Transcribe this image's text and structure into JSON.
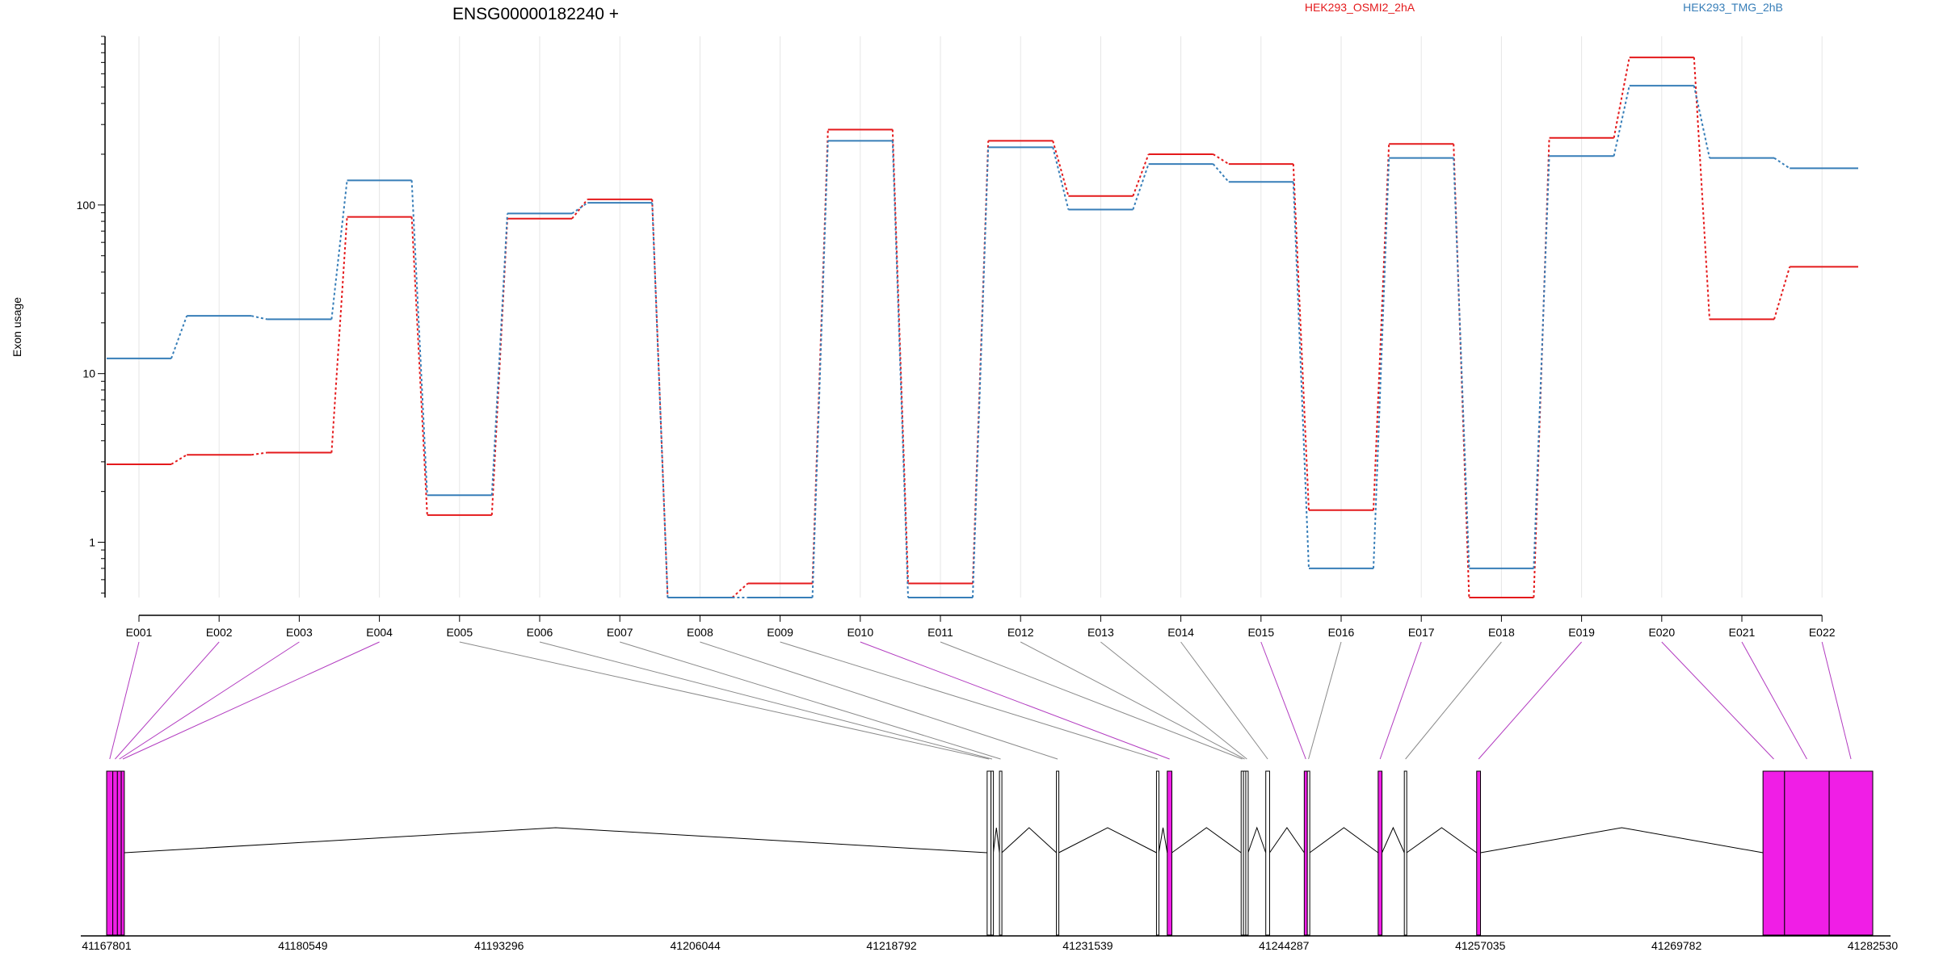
{
  "chart_data": [
    {
      "type": "line",
      "title": "ENSG00000182240 +",
      "ylabel": "Exon usage",
      "yscale": "log",
      "ylim": [
        0.47,
        1000
      ],
      "yticks": [
        1,
        10,
        100
      ],
      "ytick_labels": [
        "1",
        "10",
        "100"
      ],
      "grid": "vertical",
      "legend_placement": "top-right",
      "categories": [
        "E001",
        "E002",
        "E003",
        "E004",
        "E005",
        "E006",
        "E007",
        "E008",
        "E009",
        "E010",
        "E011",
        "E012",
        "E013",
        "E014",
        "E015",
        "E016",
        "E017",
        "E018",
        "E019",
        "E020",
        "E021",
        "E022"
      ],
      "series": [
        {
          "name": "HEK293_OSMI2_2hA",
          "color": "#e41a1c",
          "values": [
            2.9,
            3.3,
            3.4,
            85,
            1.45,
            83,
            108,
            0.47,
            0.57,
            280,
            0.57,
            240,
            113,
            200,
            175,
            1.55,
            230,
            0.47,
            250,
            750,
            21,
            43
          ]
        },
        {
          "name": "HEK293_TMG_2hB",
          "color": "#377eb8",
          "values": [
            12.3,
            22,
            21,
            140,
            1.9,
            89,
            103,
            0.47,
            0.47,
            240,
            0.47,
            220,
            94,
            175,
            137,
            0.7,
            190,
            0.7,
            195,
            510,
            190,
            165
          ]
        }
      ]
    },
    {
      "type": "gene-model",
      "x_ticks": [
        "41167801",
        "41180549",
        "41193296",
        "41206044",
        "41218792",
        "41231539",
        "41244287",
        "41257035",
        "41269782",
        "41282530"
      ],
      "xlim": [
        41167801,
        41282530
      ],
      "highlight_color": "#f01ee6",
      "exons": [
        {
          "id": "E001",
          "start": 41167801,
          "end": 41168200,
          "highlight": true
        },
        {
          "id": "E002",
          "start": 41168200,
          "end": 41168500,
          "highlight": true
        },
        {
          "id": "E003",
          "start": 41168500,
          "end": 41168750,
          "highlight": true
        },
        {
          "id": "E004",
          "start": 41168750,
          "end": 41168950,
          "highlight": true
        },
        {
          "id": "E005",
          "start": 41225000,
          "end": 41225250,
          "highlight": false
        },
        {
          "id": "E006",
          "start": 41225250,
          "end": 41225400,
          "highlight": false
        },
        {
          "id": "E007",
          "start": 41225800,
          "end": 41225950,
          "highlight": false
        },
        {
          "id": "E008",
          "start": 41229500,
          "end": 41229650,
          "highlight": false
        },
        {
          "id": "E009",
          "start": 41236000,
          "end": 41236150,
          "highlight": false
        },
        {
          "id": "E010",
          "start": 41236700,
          "end": 41237000,
          "highlight": true
        },
        {
          "id": "E011",
          "start": 41241500,
          "end": 41241650,
          "highlight": false
        },
        {
          "id": "E012",
          "start": 41241650,
          "end": 41241800,
          "highlight": false
        },
        {
          "id": "E013",
          "start": 41241800,
          "end": 41241950,
          "highlight": false
        },
        {
          "id": "E014",
          "start": 41243100,
          "end": 41243350,
          "highlight": false
        },
        {
          "id": "E015",
          "start": 41245600,
          "end": 41245800,
          "highlight": true
        },
        {
          "id": "E016",
          "start": 41245800,
          "end": 41245950,
          "highlight": false
        },
        {
          "id": "E017",
          "start": 41250400,
          "end": 41250650,
          "highlight": true
        },
        {
          "id": "E018",
          "start": 41252100,
          "end": 41252250,
          "highlight": false
        },
        {
          "id": "E019",
          "start": 41256800,
          "end": 41257050,
          "highlight": true
        },
        {
          "id": "E020",
          "start": 41275400,
          "end": 41276800,
          "highlight": true
        },
        {
          "id": "E021",
          "start": 41276800,
          "end": 41279700,
          "highlight": true
        },
        {
          "id": "E022",
          "start": 41279700,
          "end": 41282530,
          "highlight": true
        }
      ]
    }
  ]
}
